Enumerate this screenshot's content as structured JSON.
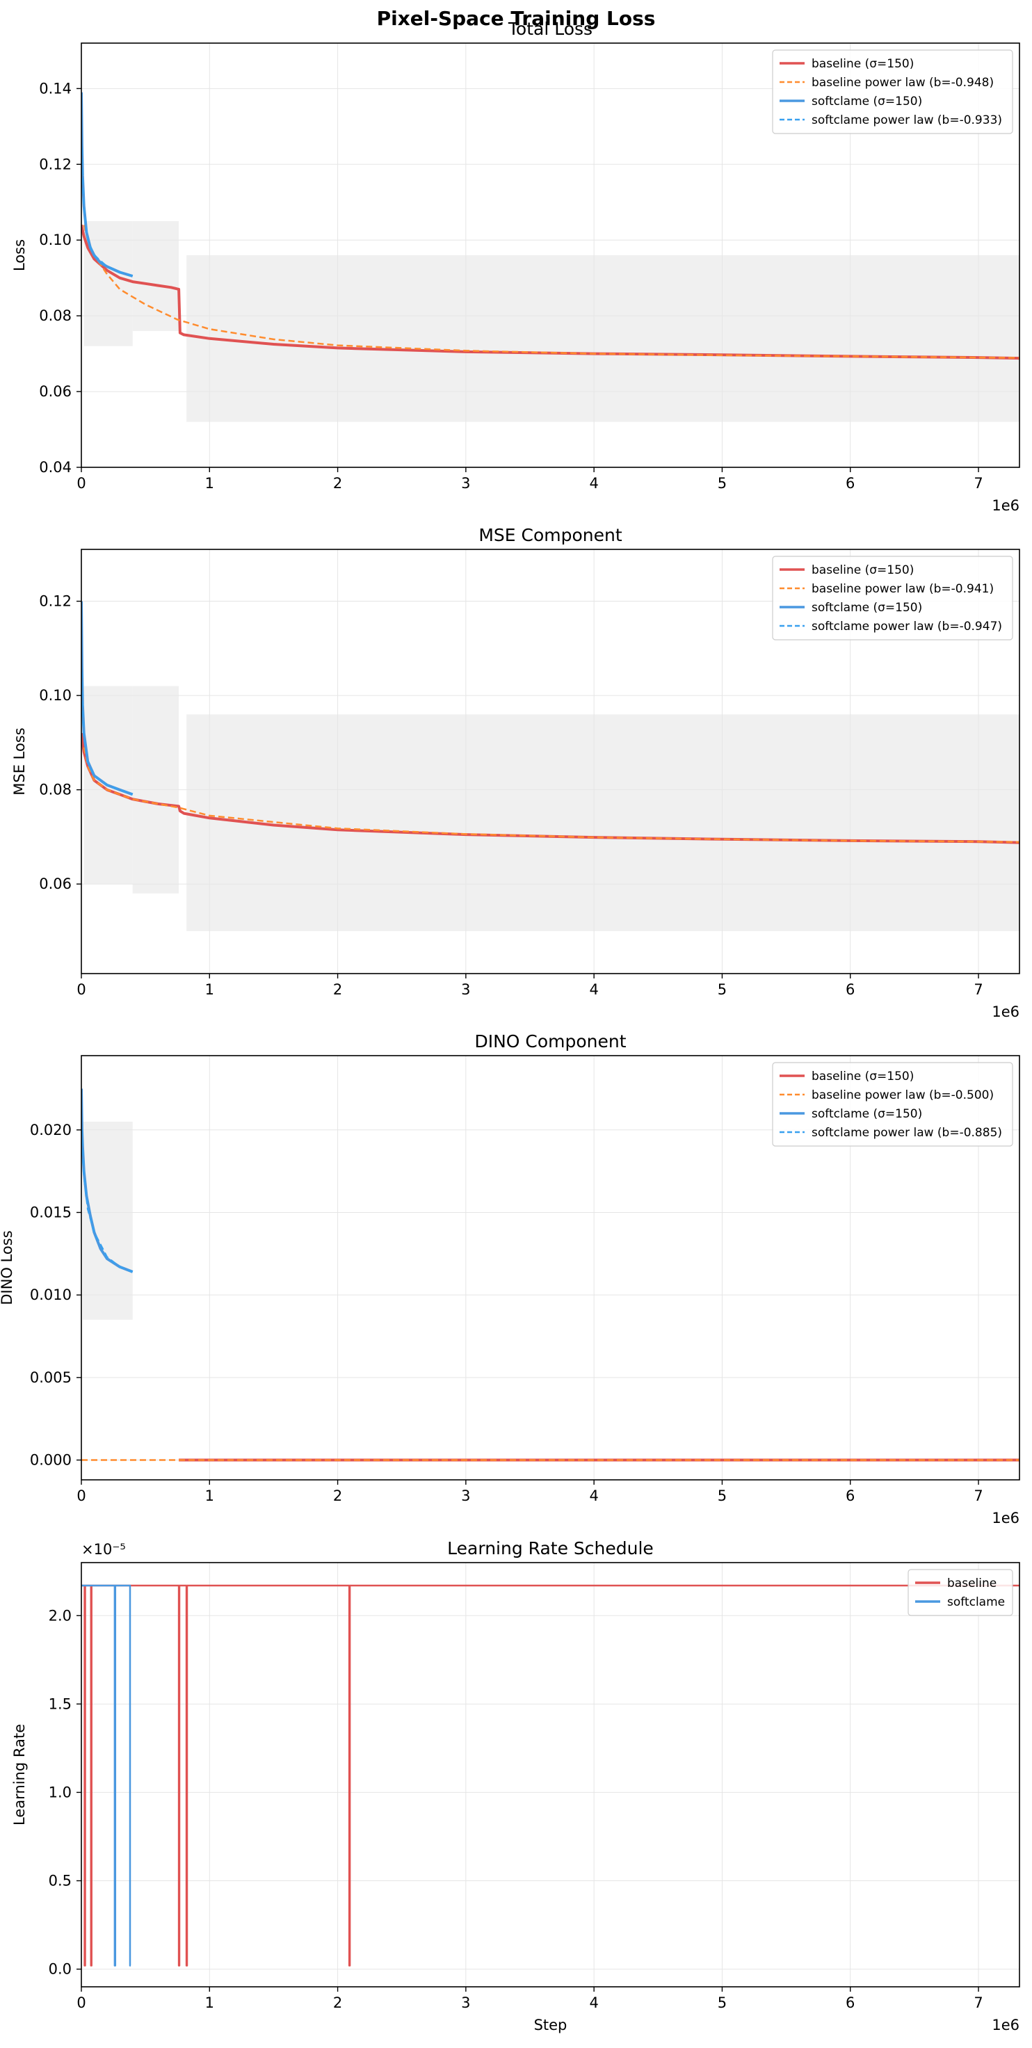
{
  "suptitle": "Pixel-Space Training Loss",
  "colors": {
    "baseline": "#e05252",
    "baseline_fit": "#ff8c2e",
    "softclame": "#4a98e0",
    "softclame_fit": "#39a0ef",
    "noise_band": "#e6e6e6",
    "grid": "#e5e5e5"
  },
  "chart_data": [
    {
      "type": "line",
      "title": "Total Loss",
      "xlabel": "",
      "ylabel": "Loss",
      "x_exponent_label": "1e6",
      "xlim": [
        0,
        7.32
      ],
      "ylim": [
        0.04,
        0.152
      ],
      "xticks": [
        0,
        1,
        2,
        3,
        4,
        5,
        6,
        7
      ],
      "yticks": [
        0.04,
        0.06,
        0.08,
        0.1,
        0.12,
        0.14
      ],
      "ytick_labels": [
        "0.04",
        "0.06",
        "0.08",
        "0.10",
        "0.12",
        "0.14"
      ],
      "grid": true,
      "legend_position": "top-right",
      "series": [
        {
          "name": "baseline (σ=150)",
          "style": "solid",
          "color": "#e05252",
          "x": [
            0,
            0.02,
            0.05,
            0.1,
            0.2,
            0.3,
            0.4,
            0.5,
            0.6,
            0.7,
            0.76,
            0.77,
            0.8,
            1.0,
            1.5,
            2,
            3,
            4,
            5,
            6,
            7,
            7.32
          ],
          "y": [
            0.104,
            0.101,
            0.098,
            0.095,
            0.092,
            0.09,
            0.089,
            0.0885,
            0.088,
            0.0875,
            0.087,
            0.0755,
            0.075,
            0.074,
            0.0725,
            0.0715,
            0.0705,
            0.07,
            0.0697,
            0.0693,
            0.069,
            0.0688
          ]
        },
        {
          "name": "baseline power law  (b=-0.948)",
          "style": "dashed",
          "color": "#ff8c2e",
          "x": [
            0.02,
            0.05,
            0.1,
            0.2,
            0.3,
            0.5,
            0.75,
            1,
            1.5,
            2,
            3,
            4,
            5,
            6,
            7,
            7.32
          ],
          "y": [
            0.104,
            0.1,
            0.096,
            0.091,
            0.087,
            0.083,
            0.079,
            0.0765,
            0.0738,
            0.0722,
            0.0708,
            0.07,
            0.0696,
            0.0693,
            0.069,
            0.0689
          ]
        },
        {
          "name": "softclame (σ=150)",
          "style": "solid",
          "color": "#4a98e0",
          "x": [
            0,
            0.005,
            0.01,
            0.02,
            0.04,
            0.07,
            0.1,
            0.15,
            0.2,
            0.3,
            0.4
          ],
          "y": [
            0.139,
            0.125,
            0.117,
            0.109,
            0.102,
            0.098,
            0.096,
            0.094,
            0.093,
            0.0915,
            0.0905
          ]
        },
        {
          "name": "softclame power law  (b=-0.933)",
          "style": "dashed",
          "color": "#39a0ef",
          "x": [
            0.005,
            0.01,
            0.02,
            0.05,
            0.1,
            0.2,
            0.3,
            0.4
          ],
          "y": [
            0.124,
            0.116,
            0.108,
            0.1,
            0.096,
            0.093,
            0.0915,
            0.0905
          ]
        }
      ],
      "bands": [
        {
          "x0": 0.02,
          "x1": 0.4,
          "lo": 0.072,
          "hi": 0.105
        },
        {
          "x0": 0.4,
          "x1": 0.76,
          "lo": 0.076,
          "hi": 0.105
        },
        {
          "x0": 0.82,
          "x1": 7.32,
          "lo": 0.052,
          "hi": 0.096
        }
      ]
    },
    {
      "type": "line",
      "title": "MSE Component",
      "xlabel": "",
      "ylabel": "MSE Loss",
      "x_exponent_label": "1e6",
      "xlim": [
        0,
        7.32
      ],
      "ylim": [
        0.041,
        0.131
      ],
      "xticks": [
        0,
        1,
        2,
        3,
        4,
        5,
        6,
        7
      ],
      "yticks": [
        0.06,
        0.08,
        0.1,
        0.12
      ],
      "ytick_labels": [
        "0.06",
        "0.08",
        "0.10",
        "0.12"
      ],
      "grid": true,
      "legend_position": "top-right",
      "series": [
        {
          "name": "baseline (σ=150)",
          "style": "solid",
          "color": "#e05252",
          "x": [
            0,
            0.02,
            0.05,
            0.1,
            0.2,
            0.3,
            0.4,
            0.5,
            0.6,
            0.76,
            0.77,
            0.8,
            1.0,
            1.5,
            2,
            3,
            4,
            5,
            6,
            7,
            7.32
          ],
          "y": [
            0.092,
            0.088,
            0.085,
            0.082,
            0.08,
            0.079,
            0.078,
            0.0775,
            0.077,
            0.0765,
            0.0755,
            0.075,
            0.074,
            0.0725,
            0.0715,
            0.0705,
            0.0699,
            0.0695,
            0.0692,
            0.069,
            0.0688
          ]
        },
        {
          "name": "baseline power law  (b=-0.941)",
          "style": "dashed",
          "color": "#ff8c2e",
          "x": [
            0.02,
            0.05,
            0.1,
            0.2,
            0.4,
            0.76,
            1,
            2,
            3,
            4,
            5,
            6,
            7,
            7.32
          ],
          "y": [
            0.089,
            0.085,
            0.082,
            0.08,
            0.078,
            0.0762,
            0.0745,
            0.0718,
            0.0706,
            0.0699,
            0.0695,
            0.0692,
            0.069,
            0.0689
          ]
        },
        {
          "name": "softclame (σ=150)",
          "style": "solid",
          "color": "#4a98e0",
          "x": [
            0,
            0.005,
            0.01,
            0.02,
            0.05,
            0.1,
            0.2,
            0.3,
            0.4
          ],
          "y": [
            0.12,
            0.106,
            0.098,
            0.092,
            0.086,
            0.083,
            0.081,
            0.08,
            0.079
          ]
        },
        {
          "name": "softclame power law  (b=-0.947)",
          "style": "dashed",
          "color": "#39a0ef",
          "x": [
            0.005,
            0.01,
            0.02,
            0.05,
            0.1,
            0.2,
            0.3,
            0.4
          ],
          "y": [
            0.105,
            0.097,
            0.091,
            0.086,
            0.083,
            0.081,
            0.08,
            0.079
          ]
        }
      ],
      "bands": [
        {
          "x0": 0.02,
          "x1": 0.4,
          "lo": 0.06,
          "hi": 0.102
        },
        {
          "x0": 0.4,
          "x1": 0.76,
          "lo": 0.058,
          "hi": 0.102
        },
        {
          "x0": 0.82,
          "x1": 7.32,
          "lo": 0.05,
          "hi": 0.096
        }
      ]
    },
    {
      "type": "line",
      "title": "DINO Component",
      "xlabel": "",
      "ylabel": "DINO Loss",
      "x_exponent_label": "1e6",
      "xlim": [
        0,
        7.32
      ],
      "ylim": [
        -0.0012,
        0.0245
      ],
      "xticks": [
        0,
        1,
        2,
        3,
        4,
        5,
        6,
        7
      ],
      "yticks": [
        0.0,
        0.005,
        0.01,
        0.015,
        0.02
      ],
      "ytick_labels": [
        "0.000",
        "0.005",
        "0.010",
        "0.015",
        "0.020"
      ],
      "grid": true,
      "legend_position": "top-right",
      "series": [
        {
          "name": "baseline (σ=150)",
          "style": "solid",
          "color": "#e05252",
          "x": [
            0.76,
            7.32
          ],
          "y": [
            0.0,
            0.0
          ]
        },
        {
          "name": "baseline power law  (b=-0.500)",
          "style": "dashed",
          "color": "#ff8c2e",
          "x": [
            0,
            7.32
          ],
          "y": [
            0.0,
            0.0
          ]
        },
        {
          "name": "softclame (σ=150)",
          "style": "solid",
          "color": "#4a98e0",
          "x": [
            0,
            0.005,
            0.01,
            0.02,
            0.04,
            0.07,
            0.1,
            0.15,
            0.2,
            0.3,
            0.4
          ],
          "y": [
            0.0225,
            0.02,
            0.019,
            0.0175,
            0.016,
            0.0148,
            0.0138,
            0.0128,
            0.0122,
            0.0117,
            0.0114
          ]
        },
        {
          "name": "softclame power law  (b=-0.885)",
          "style": "dashed",
          "color": "#39a0ef",
          "x": [
            0.005,
            0.01,
            0.02,
            0.05,
            0.1,
            0.2,
            0.3,
            0.4
          ],
          "y": [
            0.02,
            0.0188,
            0.0172,
            0.0152,
            0.0138,
            0.0123,
            0.0117,
            0.0114
          ]
        }
      ],
      "bands": [
        {
          "x0": 0.01,
          "x1": 0.4,
          "lo": 0.0085,
          "hi": 0.0205
        }
      ]
    },
    {
      "type": "line",
      "title": "Learning Rate Schedule",
      "xlabel": "Step",
      "ylabel": "Learning Rate",
      "x_exponent_label": "1e6",
      "y_exponent_label": "×10⁻⁵",
      "xlim": [
        0,
        7.32
      ],
      "ylim": [
        -0.1,
        2.3
      ],
      "xticks": [
        0,
        1,
        2,
        3,
        4,
        5,
        6,
        7
      ],
      "yticks": [
        0.0,
        0.5,
        1.0,
        1.5,
        2.0
      ],
      "ytick_labels": [
        "0.0",
        "0.5",
        "1.0",
        "1.5",
        "2.0"
      ],
      "grid": true,
      "legend_position": "top-right",
      "series": [
        {
          "name": "baseline",
          "style": "solid",
          "color": "#e05252",
          "x": [
            0,
            0.025,
            0.025,
            0.03,
            0.03,
            0.075,
            0.075,
            0.08,
            0.08,
            0.76,
            0.76,
            0.765,
            0.765,
            0.82,
            0.82,
            0.825,
            0.825,
            2.09,
            2.09,
            2.095,
            2.095,
            7.32
          ],
          "y": [
            2.17,
            2.17,
            0.02,
            0.02,
            2.17,
            2.17,
            0.02,
            0.02,
            2.17,
            2.17,
            0.02,
            0.02,
            2.17,
            2.17,
            0.02,
            0.02,
            2.17,
            2.17,
            0.02,
            0.02,
            2.17,
            2.17
          ]
        },
        {
          "name": "softclame",
          "style": "solid",
          "color": "#4a98e0",
          "x": [
            0,
            0.26,
            0.26,
            0.265,
            0.265,
            0.38,
            0.38,
            0.385
          ],
          "y": [
            2.17,
            2.17,
            0.02,
            0.02,
            2.17,
            2.17,
            0.02,
            0.02
          ]
        }
      ],
      "bands": []
    }
  ]
}
